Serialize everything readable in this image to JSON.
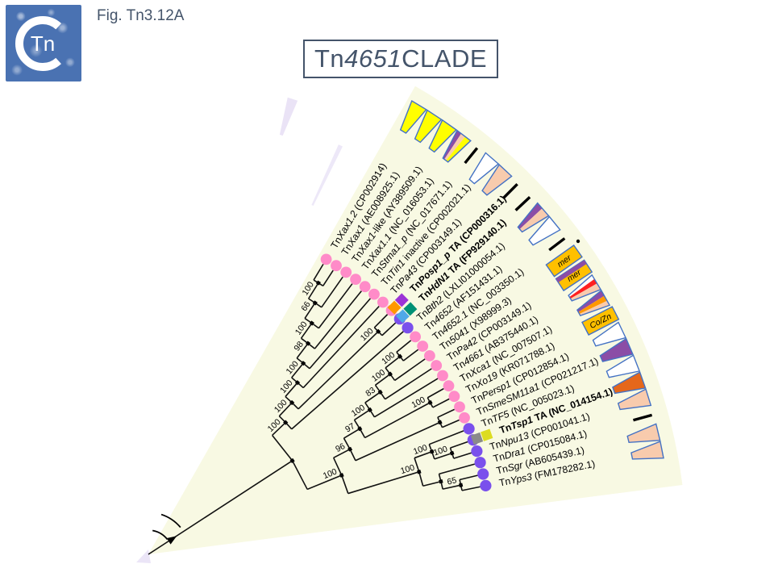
{
  "figure_label": "Fig. Tn3.12A",
  "title": {
    "prefix": "Tn",
    "italic": "4651",
    "suffix": " CLADE"
  },
  "logo": {
    "text": "Tn"
  },
  "palette": {
    "pink": "#FF8BC8",
    "violet": "#7A50EC",
    "gold": "#FFC000",
    "peach": "#F8CBAD",
    "yellow": "#FFFF00",
    "purple": "#8B4DA6",
    "vividPurple": "#9C33D6",
    "orange": "#FF9800",
    "teal": "#009175",
    "lightBlue": "#4FA8E8",
    "gray": "#8A8A8A",
    "oliveYellow": "#DCDC21",
    "darkOrange": "#E5671B",
    "red": "#FF2020",
    "white": "#FFFFFF",
    "outline": "#4472C4",
    "fan": "#F8F9E3",
    "lavender": "#E9E2F6",
    "ink": "#000000",
    "heading": "#44546A"
  },
  "taxa": [
    {
      "name": "Xax1.2",
      "post": "",
      "acc": "CP002914",
      "bold": false,
      "dot": "pink",
      "squares": [],
      "shape": {
        "type": "wedge",
        "stripes": [
          [
            "yellow",
            1
          ]
        ]
      }
    },
    {
      "name": "Xax1",
      "post": "",
      "acc": "AE008925.1",
      "bold": false,
      "dot": "pink",
      "squares": [],
      "shape": {
        "type": "wedge",
        "stripes": [
          [
            "yellow",
            1
          ]
        ]
      }
    },
    {
      "name": "Xax1",
      "post": "-like",
      "acc": "AY389509.1",
      "bold": false,
      "dot": "pink",
      "squares": [],
      "shape": {
        "type": "wedge",
        "stripes": [
          [
            "yellow",
            1
          ]
        ]
      }
    },
    {
      "name": "Xax1.1",
      "post": "",
      "acc": "NC_016053.1",
      "bold": false,
      "dot": "pink",
      "squares": [],
      "shape": {
        "type": "wedge",
        "stripes": [
          [
            "purple",
            0.3
          ],
          [
            "peach",
            0.3
          ],
          [
            "yellow",
            0.4
          ]
        ]
      }
    },
    {
      "name": "Stma1_p",
      "post": "",
      "acc": "NC_017671.1",
      "bold": false,
      "dot": "pink",
      "squares": [],
      "shape": {
        "type": "dash"
      }
    },
    {
      "name": "Tin1",
      "post": " inactive",
      "acc": "CP002021.1",
      "bold": false,
      "dot": "pink",
      "squares": [],
      "shape": {
        "type": "wedge",
        "stripes": [
          [
            "white",
            1
          ]
        ]
      }
    },
    {
      "name": "Pa43",
      "post": "",
      "acc": "CP003149.1",
      "bold": false,
      "dot": "pink",
      "squares": [],
      "shape": {
        "type": "wedge",
        "stripes": [
          [
            "peach",
            1
          ]
        ]
      }
    },
    {
      "name": "Posp1_p",
      "post": " TA",
      "acc": "CP000316.1",
      "bold": true,
      "dot": "pink",
      "squares": [
        "orange",
        "vividPurple"
      ],
      "shape": {
        "type": "dash"
      }
    },
    {
      "name": "HdN1",
      "post": " TA",
      "acc": "FP929140.1",
      "bold": true,
      "dot": "violet",
      "squares": [
        "lightBlue",
        "teal"
      ],
      "shape": {
        "type": "dash"
      }
    },
    {
      "name": "Bth2",
      "post": "",
      "acc": "LXLI01000054.1",
      "bold": false,
      "dot": "violet",
      "squares": [],
      "shape": {
        "type": "wedge",
        "stripes": [
          [
            "purple",
            0.42
          ],
          [
            "peach",
            0.58
          ]
        ]
      }
    },
    {
      "name": "4652",
      "post": "",
      "acc": "AF151431.1",
      "bold": false,
      "dot": "pink",
      "squares": [],
      "shape": {
        "type": "wedge",
        "stripes": [
          [
            "white",
            1
          ]
        ]
      }
    },
    {
      "name": "4652.1",
      "post": "",
      "acc": "NC_003350.1",
      "bold": false,
      "dot": "pink",
      "squares": [],
      "shape": {
        "type": "dash"
      }
    },
    {
      "name": "5041",
      "post": "",
      "acc": "X98999.3",
      "bold": false,
      "dot": "pink",
      "squares": [],
      "shape": {
        "type": "box",
        "text": "mer",
        "stripe": null
      }
    },
    {
      "name": "Pa42",
      "post": "",
      "acc": "CP003149.1",
      "bold": false,
      "dot": "pink",
      "squares": [],
      "shape": {
        "type": "box",
        "text": "mer",
        "stripe": "purple"
      }
    },
    {
      "name": "4661",
      "post": "",
      "acc": "AB375440.1",
      "bold": false,
      "dot": "pink",
      "squares": [],
      "shape": {
        "type": "wedge",
        "stripes": [
          [
            "white",
            0.28
          ],
          [
            "red",
            0.3
          ],
          [
            "peach",
            0.42
          ]
        ]
      }
    },
    {
      "name": "Xca1",
      "post": "",
      "acc": "NC_007507.1",
      "bold": false,
      "dot": "pink",
      "squares": [],
      "shape": {
        "type": "wedge",
        "stripes": [
          [
            "purple",
            0.36
          ],
          [
            "orange",
            0.34
          ],
          [
            "peach",
            0.3
          ]
        ]
      }
    },
    {
      "name": "Xo19",
      "post": "",
      "acc": "KR071788.1",
      "bold": false,
      "dot": "pink",
      "squares": [],
      "shape": {
        "type": "box",
        "text": "Co/Zn",
        "stripe": null
      }
    },
    {
      "name": "Persp1",
      "post": "",
      "acc": "CP012854.1",
      "bold": false,
      "dot": "pink",
      "squares": [],
      "shape": {
        "type": "wedge",
        "stripes": [
          [
            "white",
            1
          ]
        ]
      }
    },
    {
      "name": "SmeSM11a1",
      "post": "",
      "acc": "CP021217.1",
      "bold": false,
      "dot": "pink",
      "squares": [],
      "shape": {
        "type": "wedge",
        "stripes": [
          [
            "purple",
            1
          ]
        ]
      }
    },
    {
      "name": "TF5",
      "post": "",
      "acc": "NC_005023.1",
      "bold": false,
      "dot": "violet",
      "squares": [],
      "shape": {
        "type": "wedge",
        "stripes": [
          [
            "white",
            1
          ]
        ]
      }
    },
    {
      "name": "Tsp1",
      "post": " TA",
      "acc": "NC_014154.1",
      "bold": true,
      "dot": "violet",
      "squares": [
        "gray",
        "oliveYellow"
      ],
      "shape": {
        "type": "wedge",
        "stripes": [
          [
            "darkOrange",
            1
          ]
        ]
      }
    },
    {
      "name": "Npu13",
      "post": "",
      "acc": "CP001041.1",
      "bold": false,
      "dot": "violet",
      "squares": [],
      "shape": {
        "type": "wedge",
        "stripes": [
          [
            "peach",
            1
          ]
        ]
      }
    },
    {
      "name": "Dra1",
      "post": "",
      "acc": "CP015084.1",
      "bold": false,
      "dot": "violet",
      "squares": [],
      "shape": {
        "type": "dash"
      }
    },
    {
      "name": "Sgr",
      "post": "",
      "acc": "AB605439.1",
      "bold": false,
      "dot": "violet",
      "squares": [],
      "shape": {
        "type": "wedge",
        "stripes": [
          [
            "peach",
            1
          ]
        ]
      }
    },
    {
      "name": "Yps3",
      "post": "",
      "acc": "FM178282.1",
      "bold": false,
      "dot": "violet",
      "squares": [],
      "shape": {
        "type": "wedge",
        "stripes": [
          [
            "peach",
            1
          ]
        ]
      }
    }
  ],
  "tree": {
    "s": null,
    "c": [
      {
        "s": 100,
        "c": [
          {
            "s": 100,
            "c": [
              {
                "s": 100,
                "c": [
                  {
                    "s": 100,
                    "c": [
                      {
                        "s": 98,
                        "c": [
                          {
                            "s": 100,
                            "c": [
                              {
                                "s": 66,
                                "c": [
                                  {
                                    "s": 100,
                                    "c": [
                                      {
                                        "t": 0
                                      },
                                      {
                                        "t": 1
                                      }
                                    ]
                                  },
                                  {
                                    "t": 2
                                  }
                                ]
                              },
                              {
                                "t": 3
                              }
                            ]
                          },
                          {
                            "t": 4
                          }
                        ]
                      },
                      {
                        "t": 5
                      }
                    ]
                  },
                  {
                    "t": 6
                  }
                ]
              },
              {
                "s": 100,
                "c": [
                  {
                    "t": 7
                  },
                  {
                    "t": 8
                  }
                ]
              }
            ]
          },
          {
            "t": 9
          }
        ]
      },
      {
        "s": 100,
        "c": [
          {
            "s": 96,
            "c": [
              {
                "s": 97,
                "c": [
                  {
                    "s": 100,
                    "c": [
                      {
                        "s": 83,
                        "c": [
                          {
                            "s": 100,
                            "c": [
                              {
                                "s": 100,
                                "c": [
                                  {
                                    "t": 10
                                  },
                                  {
                                    "t": 11
                                  }
                                ]
                              },
                              {
                                "t": 12
                              }
                            ]
                          },
                          {
                            "t": 13
                          }
                        ]
                      },
                      {
                        "t": 14
                      }
                    ]
                  },
                  {
                    "s": 100,
                    "c": [
                      {
                        "t": 15
                      },
                      {
                        "t": 16
                      }
                    ]
                  }
                ]
              },
              {
                "s": null,
                "c": [
                  {
                    "t": 17
                  },
                  {
                    "t": 18
                  }
                ]
              }
            ]
          },
          {
            "s": 100,
            "c": [
              {
                "s": 100,
                "c": [
                  {
                    "t": 19
                  },
                  {
                    "s": 100,
                    "c": [
                      {
                        "t": 20
                      },
                      {
                        "t": 21
                      }
                    ]
                  }
                ]
              },
              {
                "s": null,
                "c": [
                  {
                    "t": 22
                  },
                  {
                    "s": 65,
                    "c": [
                      {
                        "t": 23
                      },
                      {
                        "t": 24
                      }
                    ]
                  }
                ]
              }
            ]
          }
        ]
      }
    ]
  }
}
